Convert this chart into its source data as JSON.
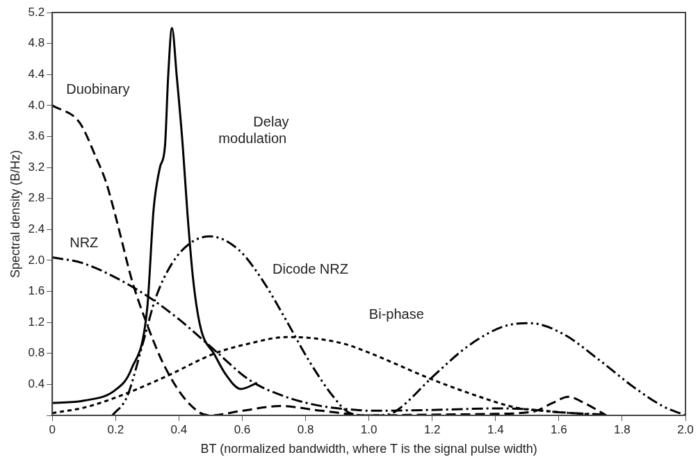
{
  "chart_data": {
    "type": "line",
    "xlabel": "BT (normalized bandwidth, where T is the signal pulse width)",
    "ylabel": "Spectral density (B/Hz)",
    "xlim": [
      0,
      2.0
    ],
    "xticks": [
      0,
      0.2,
      0.4,
      0.6,
      0.8,
      {
        "value": 1.0,
        "label": "1.0"
      },
      1.2,
      1.4,
      1.6,
      1.8,
      {
        "value": 2.0,
        "label": "2.0"
      }
    ],
    "ylim": [
      0,
      5.2
    ],
    "yticks": [
      {
        "value": 0,
        "label": null
      },
      0.4,
      0.8,
      1.2,
      1.6,
      {
        "value": 2.0,
        "label": "2.0"
      },
      2.4,
      2.8,
      3.2,
      3.6,
      {
        "value": 4.0,
        "label": "4.0"
      },
      4.4,
      4.8,
      5.2
    ],
    "grid": false,
    "legend": false,
    "marker": "none",
    "series": [
      {
        "name": "Duobinary",
        "color": "#000000",
        "line_style": "dashed",
        "x": [
          0,
          0.086,
          0.139,
          0.169,
          0.198,
          0.213,
          0.251,
          0.296,
          0.348,
          0.408,
          0.468,
          0.5,
          0.6,
          0.72,
          0.85,
          1.0,
          1.2,
          1.4,
          1.52,
          1.58,
          1.63,
          1.68,
          1.75
        ],
        "values": [
          4.0,
          3.78,
          3.32,
          3.02,
          2.6,
          2.36,
          1.75,
          1.21,
          0.69,
          0.27,
          0.03,
          0.0,
          0.06,
          0.12,
          0.06,
          0.0,
          0.01,
          0.02,
          0.05,
          0.16,
          0.24,
          0.16,
          0.0
        ]
      },
      {
        "name": "Delay modulation",
        "color": "#000000",
        "line_style": "solid",
        "x": [
          0,
          0.1,
          0.2,
          0.25,
          0.3,
          0.32,
          0.34,
          0.356,
          0.366,
          0.378,
          0.393,
          0.412,
          0.427,
          0.445,
          0.468,
          0.513,
          0.546,
          0.596,
          0.647
        ],
        "values": [
          0.16,
          0.19,
          0.33,
          0.6,
          1.39,
          2.66,
          3.2,
          3.48,
          4.38,
          5.0,
          4.38,
          3.48,
          2.6,
          1.75,
          1.14,
          0.78,
          0.54,
          0.34,
          0.42
        ]
      },
      {
        "name": "NRZ",
        "color": "#000000",
        "line_style": "dashdot",
        "x": [
          0,
          0.1,
          0.281,
          0.4,
          0.513,
          0.625,
          0.737,
          0.85,
          0.962,
          1.0,
          1.2,
          1.4,
          1.5,
          1.6,
          1.75
        ],
        "values": [
          2.04,
          1.96,
          1.59,
          1.24,
          0.84,
          0.45,
          0.24,
          0.12,
          0.07,
          0.06,
          0.07,
          0.09,
          0.08,
          0.04,
          0.01
        ]
      },
      {
        "name": "Dicode NRZ",
        "color": "#000000",
        "line_style": "dashdotdot",
        "x": [
          0.19,
          0.236,
          0.288,
          0.326,
          0.378,
          0.438,
          0.498,
          0.588,
          0.663,
          0.737,
          0.813,
          0.888,
          0.94,
          1.0,
          1.06,
          1.097,
          1.202,
          1.315,
          1.427,
          1.51,
          1.614,
          1.726,
          1.838,
          1.928,
          2.0
        ],
        "values": [
          0.0,
          0.24,
          0.96,
          1.51,
          1.96,
          2.23,
          2.31,
          2.14,
          1.75,
          1.24,
          0.69,
          0.24,
          0.03,
          0.0,
          0.01,
          0.09,
          0.5,
          0.9,
          1.15,
          1.19,
          1.05,
          0.72,
          0.36,
          0.12,
          0.0
        ]
      },
      {
        "name": "Bi-phase",
        "color": "#000000",
        "line_style": "dotted",
        "x": [
          0,
          0.1,
          0.213,
          0.363,
          0.513,
          0.625,
          0.737,
          0.813,
          0.925,
          1.0,
          1.202,
          1.35,
          1.465,
          1.577,
          1.75
        ],
        "values": [
          0.03,
          0.1,
          0.25,
          0.51,
          0.8,
          0.93,
          1.01,
          1.0,
          0.92,
          0.81,
          0.46,
          0.24,
          0.1,
          0.05,
          0.0
        ]
      }
    ]
  }
}
